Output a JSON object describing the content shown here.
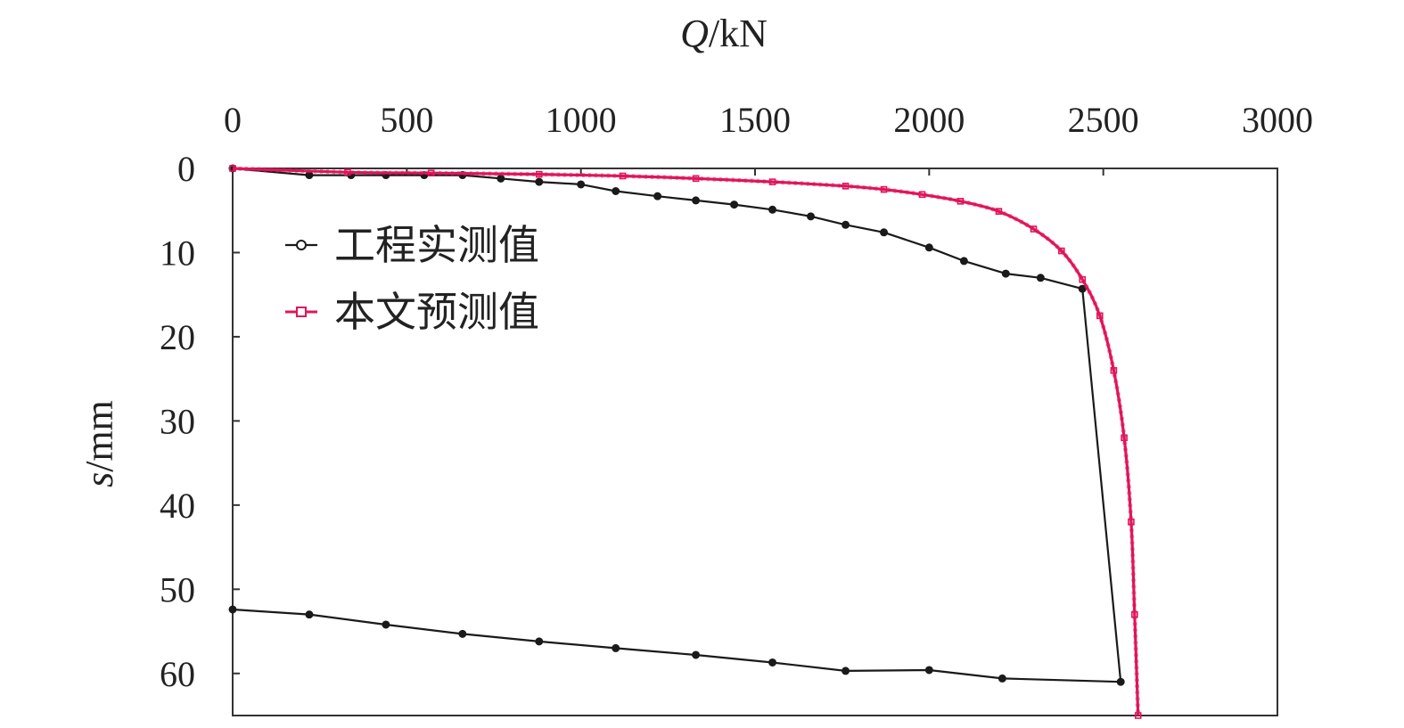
{
  "chart_data": {
    "type": "line",
    "xlabel": "Q/kN",
    "xlabel_italic": "Q",
    "xlabel_unit": "/kN",
    "ylabel": "s/mm",
    "ylabel_italic": "s",
    "ylabel_unit": "/mm",
    "xlim": [
      0,
      3000
    ],
    "ylim": [
      0,
      65
    ],
    "x_axis_position": "top",
    "y_axis_inverted": true,
    "xticks": [
      "0",
      "500",
      "1000",
      "1500",
      "2000",
      "2500",
      "3000"
    ],
    "yticks": [
      "0",
      "10",
      "20",
      "30",
      "40",
      "50",
      "60"
    ],
    "grid": false,
    "legend_position": "top-left",
    "series": [
      {
        "name": "工程实测值",
        "color": "#1a1a1a",
        "marker": "circle",
        "points": [
          [
            0,
            0
          ],
          [
            220,
            0.8
          ],
          [
            340,
            0.8
          ],
          [
            440,
            0.8
          ],
          [
            550,
            0.8
          ],
          [
            660,
            0.8
          ],
          [
            770,
            1.2
          ],
          [
            880,
            1.6
          ],
          [
            1000,
            1.9
          ],
          [
            1100,
            2.7
          ],
          [
            1220,
            3.3
          ],
          [
            1330,
            3.8
          ],
          [
            1440,
            4.3
          ],
          [
            1550,
            4.9
          ],
          [
            1660,
            5.7
          ],
          [
            1760,
            6.7
          ],
          [
            1870,
            7.6
          ],
          [
            2000,
            9.4
          ],
          [
            2100,
            11.0
          ],
          [
            2220,
            12.5
          ],
          [
            2320,
            13.0
          ],
          [
            2440,
            14.3
          ],
          [
            2550,
            61.0
          ],
          [
            2210,
            60.6
          ],
          [
            2000,
            59.6
          ],
          [
            1760,
            59.7
          ],
          [
            1550,
            58.7
          ],
          [
            1330,
            57.8
          ],
          [
            1100,
            57.0
          ],
          [
            880,
            56.2
          ],
          [
            660,
            55.3
          ],
          [
            440,
            54.2
          ],
          [
            220,
            53.0
          ],
          [
            0,
            52.4
          ]
        ]
      },
      {
        "name": "本文预测值",
        "color": "#e0155b",
        "marker": "square",
        "asymptote_q": 2600,
        "points": [
          [
            0,
            0
          ],
          [
            330,
            0.45
          ],
          [
            570,
            0.55
          ],
          [
            880,
            0.7
          ],
          [
            1120,
            0.9
          ],
          [
            1330,
            1.2
          ],
          [
            1550,
            1.6
          ],
          [
            1760,
            2.1
          ],
          [
            1870,
            2.5
          ],
          [
            1980,
            3.1
          ],
          [
            2090,
            3.9
          ],
          [
            2200,
            5.1
          ],
          [
            2300,
            7.2
          ],
          [
            2380,
            9.8
          ],
          [
            2440,
            13.2
          ],
          [
            2490,
            17.5
          ],
          [
            2530,
            24.0
          ],
          [
            2560,
            32.0
          ],
          [
            2580,
            42.0
          ],
          [
            2590,
            53.0
          ],
          [
            2600,
            65.0
          ]
        ]
      }
    ]
  }
}
